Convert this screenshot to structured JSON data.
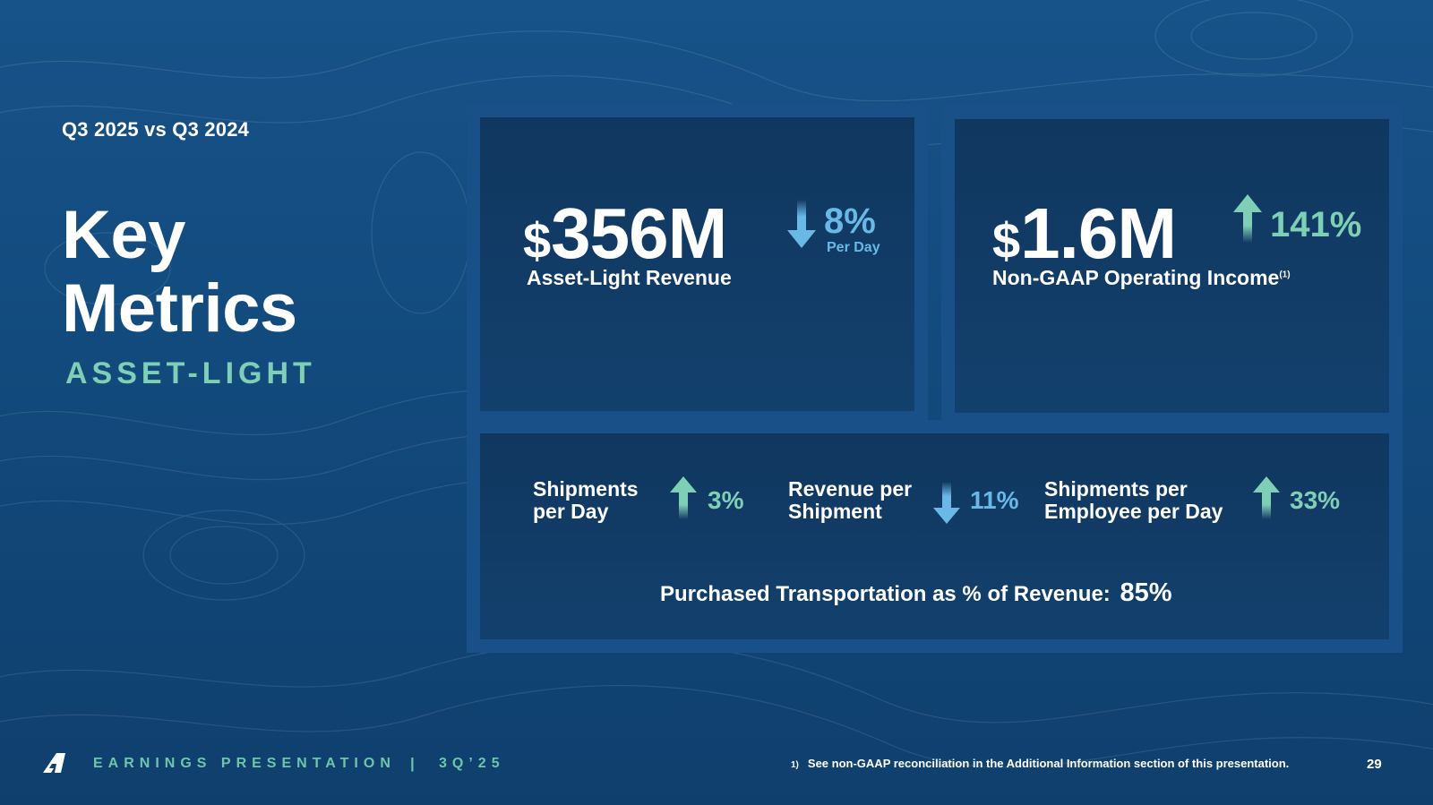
{
  "slide": {
    "comparison": "Q3 2025 vs Q3 2024",
    "title_line1": "Key",
    "title_line2": "Metrics",
    "subtitle": "ASSET-LIGHT"
  },
  "metrics_top": [
    {
      "currency": "$",
      "value": "356M",
      "label": "Asset-Light Revenue",
      "change": "8%",
      "direction": "down",
      "change_note": "Per Day"
    },
    {
      "currency": "$",
      "value": "1.6M",
      "label": "Non-GAAP Operating Income",
      "footnote_ref": "(1)",
      "change": "141%",
      "direction": "up"
    }
  ],
  "metrics_bottom": [
    {
      "label_line1": "Shipments",
      "label_line2": "per Day",
      "change": "3%",
      "direction": "up"
    },
    {
      "label_line1": "Revenue per",
      "label_line2": "Shipment",
      "change": "11%",
      "direction": "down"
    },
    {
      "label_line1": "Shipments per",
      "label_line2": "Employee per Day",
      "change": "33%",
      "direction": "up"
    }
  ],
  "purchased_transportation": {
    "label": "Purchased Transportation as % of Revenue:",
    "value": "85%"
  },
  "footer": {
    "title": "EARNINGS PRESENTATION",
    "separator": "|",
    "quarter": "3Q’25",
    "footnote_marker": "1)",
    "footnote": "See non-GAAP reconciliation in the Additional Information section of this presentation.",
    "page_number": "29"
  },
  "colors": {
    "background": "#15508a",
    "card": "#10375f",
    "accent_green": "#7fcfb6",
    "accent_blue": "#6ab8e6"
  },
  "icons": {
    "down": "arrow-down-icon",
    "up": "arrow-up-icon",
    "logo": "company-logo-icon"
  }
}
